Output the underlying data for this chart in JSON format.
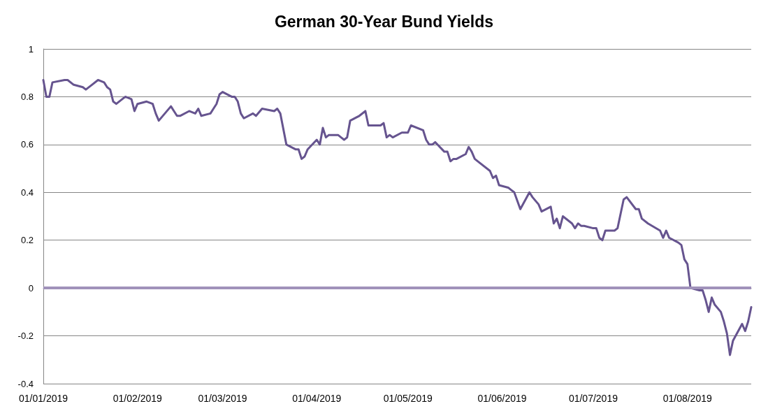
{
  "chart_data": {
    "type": "line",
    "title": "German 30-Year Bund Yields",
    "x": [
      "2019-01-01",
      "2019-01-02",
      "2019-01-03",
      "2019-01-04",
      "2019-01-08",
      "2019-01-09",
      "2019-01-11",
      "2019-01-14",
      "2019-01-15",
      "2019-01-17",
      "2019-01-19",
      "2019-01-21",
      "2019-01-22",
      "2019-01-23",
      "2019-01-24",
      "2019-01-25",
      "2019-01-28",
      "2019-01-30",
      "2019-01-31",
      "2019-02-01",
      "2019-02-04",
      "2019-02-06",
      "2019-02-07",
      "2019-02-08",
      "2019-02-12",
      "2019-02-13",
      "2019-02-14",
      "2019-02-15",
      "2019-02-18",
      "2019-02-20",
      "2019-02-21",
      "2019-02-22",
      "2019-02-25",
      "2019-02-26",
      "2019-02-27",
      "2019-02-28",
      "2019-03-01",
      "2019-03-04",
      "2019-03-05",
      "2019-03-06",
      "2019-03-07",
      "2019-03-08",
      "2019-03-11",
      "2019-03-12",
      "2019-03-14",
      "2019-03-18",
      "2019-03-19",
      "2019-03-20",
      "2019-03-22",
      "2019-03-25",
      "2019-03-26",
      "2019-03-27",
      "2019-03-28",
      "2019-03-29",
      "2019-04-01",
      "2019-04-02",
      "2019-04-03",
      "2019-04-04",
      "2019-04-05",
      "2019-04-08",
      "2019-04-09",
      "2019-04-10",
      "2019-04-11",
      "2019-04-12",
      "2019-04-15",
      "2019-04-17",
      "2019-04-18",
      "2019-04-22",
      "2019-04-23",
      "2019-04-24",
      "2019-04-25",
      "2019-04-26",
      "2019-04-29",
      "2019-05-01",
      "2019-05-02",
      "2019-05-06",
      "2019-05-07",
      "2019-05-08",
      "2019-05-09",
      "2019-05-10",
      "2019-05-13",
      "2019-05-14",
      "2019-05-15",
      "2019-05-16",
      "2019-05-17",
      "2019-05-20",
      "2019-05-21",
      "2019-05-22",
      "2019-05-23",
      "2019-05-24",
      "2019-05-28",
      "2019-05-29",
      "2019-05-30",
      "2019-05-31",
      "2019-06-03",
      "2019-06-04",
      "2019-06-05",
      "2019-06-07",
      "2019-06-10",
      "2019-06-11",
      "2019-06-13",
      "2019-06-14",
      "2019-06-17",
      "2019-06-18",
      "2019-06-19",
      "2019-06-20",
      "2019-06-21",
      "2019-06-24",
      "2019-06-25",
      "2019-06-26",
      "2019-06-27",
      "2019-06-28",
      "2019-07-01",
      "2019-07-02",
      "2019-07-03",
      "2019-07-04",
      "2019-07-05",
      "2019-07-08",
      "2019-07-09",
      "2019-07-11",
      "2019-07-12",
      "2019-07-15",
      "2019-07-16",
      "2019-07-17",
      "2019-07-19",
      "2019-07-23",
      "2019-07-24",
      "2019-07-25",
      "2019-07-26",
      "2019-07-29",
      "2019-07-30",
      "2019-07-31",
      "2019-08-01",
      "2019-08-02",
      "2019-08-05",
      "2019-08-06",
      "2019-08-07",
      "2019-08-08",
      "2019-08-09",
      "2019-08-10",
      "2019-08-12",
      "2019-08-13",
      "2019-08-14",
      "2019-08-15",
      "2019-08-16",
      "2019-08-19",
      "2019-08-20",
      "2019-08-21",
      "2019-08-22"
    ],
    "series": [
      {
        "color": "#66548f",
        "values": [
          0.87,
          0.8,
          0.8,
          0.86,
          0.87,
          0.87,
          0.85,
          0.84,
          0.83,
          0.85,
          0.87,
          0.86,
          0.84,
          0.83,
          0.78,
          0.77,
          0.8,
          0.79,
          0.74,
          0.77,
          0.78,
          0.77,
          0.73,
          0.7,
          0.76,
          0.74,
          0.72,
          0.72,
          0.74,
          0.73,
          0.75,
          0.72,
          0.73,
          0.75,
          0.77,
          0.81,
          0.82,
          0.8,
          0.8,
          0.78,
          0.73,
          0.71,
          0.73,
          0.72,
          0.75,
          0.74,
          0.75,
          0.73,
          0.6,
          0.58,
          0.58,
          0.54,
          0.55,
          0.58,
          0.62,
          0.6,
          0.67,
          0.63,
          0.64,
          0.64,
          0.63,
          0.62,
          0.63,
          0.7,
          0.72,
          0.74,
          0.68,
          0.68,
          0.69,
          0.63,
          0.64,
          0.63,
          0.65,
          0.65,
          0.68,
          0.66,
          0.62,
          0.6,
          0.6,
          0.61,
          0.57,
          0.57,
          0.53,
          0.54,
          0.54,
          0.56,
          0.59,
          0.57,
          0.54,
          0.53,
          0.49,
          0.46,
          0.47,
          0.43,
          0.42,
          0.41,
          0.4,
          0.33,
          0.4,
          0.38,
          0.35,
          0.32,
          0.34,
          0.27,
          0.29,
          0.25,
          0.3,
          0.27,
          0.25,
          0.27,
          0.26,
          0.26,
          0.25,
          0.25,
          0.21,
          0.2,
          0.24,
          0.24,
          0.25,
          0.37,
          0.38,
          0.33,
          0.33,
          0.29,
          0.27,
          0.24,
          0.21,
          0.24,
          0.21,
          0.19,
          0.18,
          0.12,
          0.1,
          0.0,
          -0.01,
          -0.01,
          -0.05,
          -0.1,
          -0.04,
          -0.07,
          -0.1,
          -0.14,
          -0.19,
          -0.28,
          -0.22,
          -0.15,
          -0.18,
          -0.14,
          -0.08
        ]
      }
    ],
    "xlim": [
      "2019-01-01",
      "2019-08-22"
    ],
    "xticks": [
      {
        "value": "2019-01-01",
        "label": "01/01/2019"
      },
      {
        "value": "2019-02-01",
        "label": "01/02/2019"
      },
      {
        "value": "2019-03-01",
        "label": "01/03/2019"
      },
      {
        "value": "2019-04-01",
        "label": "01/04/2019"
      },
      {
        "value": "2019-05-01",
        "label": "01/05/2019"
      },
      {
        "value": "2019-06-01",
        "label": "01/06/2019"
      },
      {
        "value": "2019-07-01",
        "label": "01/07/2019"
      },
      {
        "value": "2019-08-01",
        "label": "01/08/2019"
      }
    ],
    "ylim": [
      -0.4,
      1
    ],
    "yticks": [
      -0.4,
      -0.2,
      0,
      0.2,
      0.4,
      0.6,
      0.8,
      1
    ],
    "ref_lines": [
      {
        "axis": "y",
        "value": 0,
        "color": "#a092ba"
      }
    ],
    "grid": "y",
    "marker": "none",
    "line_style": "solid"
  }
}
